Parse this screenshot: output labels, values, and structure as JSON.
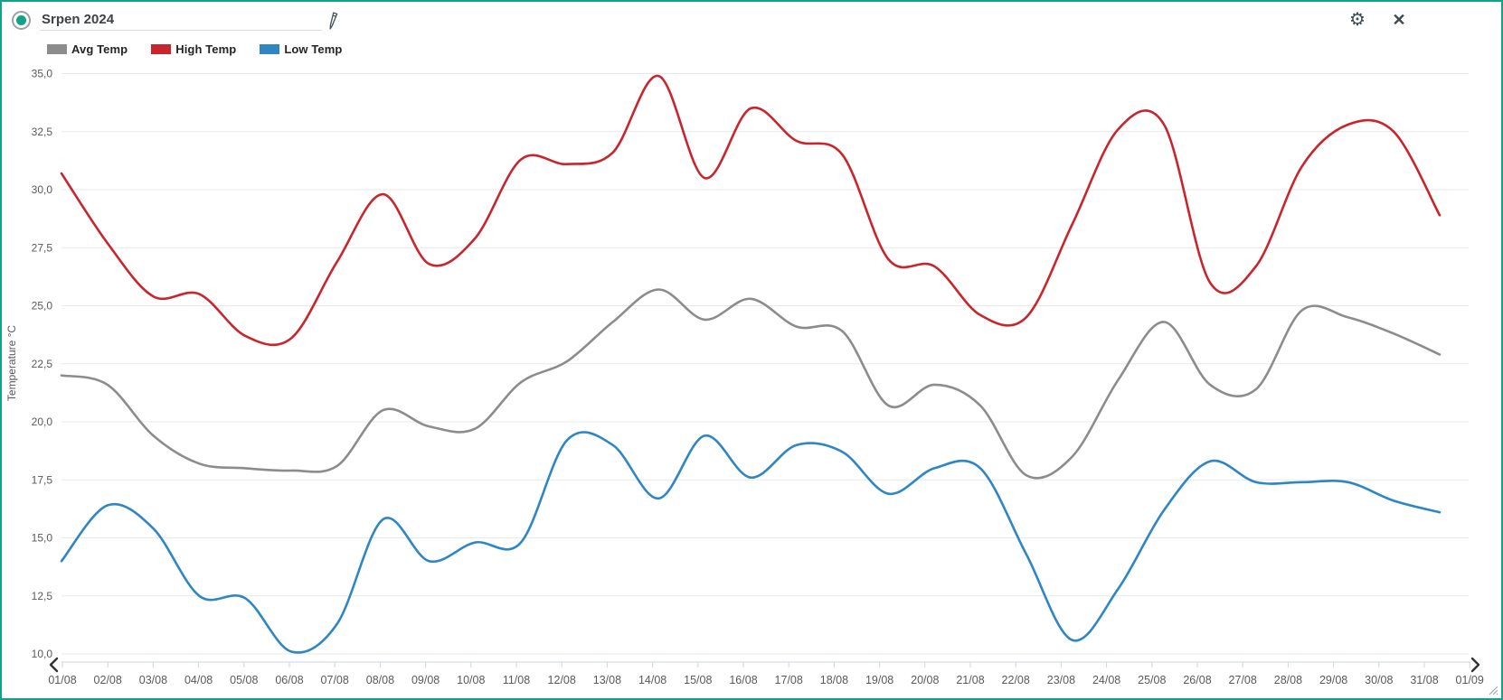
{
  "header": {
    "title": "Srpen 2024"
  },
  "icons": {
    "radio": "record-indicator-icon",
    "edit": "pencil-icon",
    "settings": "gear-icon",
    "close": "close-icon",
    "gear_glyph": "⚙",
    "close_glyph": "✕"
  },
  "colors": {
    "frame": "#12a287",
    "avg": "#8c8c8c",
    "high": "#c9252d",
    "low": "#2e86c4",
    "grid": "#e9e9e9",
    "axis": "#ccd6e0",
    "axis_text": "#5a5a5a",
    "chevron": "#333333"
  },
  "chart_data": {
    "type": "line",
    "smooth": true,
    "title": "",
    "xlabel": "",
    "ylabel": "Temperature °C",
    "ylim": [
      10,
      35
    ],
    "ytick_step": 2.5,
    "y_tick_labels": [
      "35,0",
      "32,5",
      "30,0",
      "27,5",
      "25,0",
      "22,5",
      "20,0",
      "17,5",
      "15,0",
      "12,5",
      "10,0"
    ],
    "x_axis_labels": [
      "01/08",
      "02/08",
      "03/08",
      "04/08",
      "05/08",
      "06/08",
      "07/08",
      "08/08",
      "09/08",
      "10/08",
      "11/08",
      "12/08",
      "13/08",
      "14/08",
      "15/08",
      "16/08",
      "17/08",
      "18/08",
      "19/08",
      "20/08",
      "21/08",
      "22/08",
      "23/08",
      "24/08",
      "25/08",
      "26/08",
      "27/08",
      "28/08",
      "29/08",
      "30/08",
      "31/08",
      "01/09"
    ],
    "categories": [
      "01/08",
      "02/08",
      "03/08",
      "04/08",
      "05/08",
      "06/08",
      "07/08",
      "08/08",
      "09/08",
      "10/08",
      "11/08",
      "12/08",
      "13/08",
      "14/08",
      "15/08",
      "16/08",
      "17/08",
      "18/08",
      "19/08",
      "20/08",
      "21/08",
      "22/08",
      "23/08",
      "24/08",
      "25/08",
      "26/08",
      "27/08",
      "28/08",
      "29/08",
      "30/08",
      "31/08"
    ],
    "grid": "horizontal-only",
    "legend_position": "top-left",
    "series": [
      {
        "name": "Avg Temp",
        "color": "#8c8c8c",
        "values": [
          22.0,
          21.6,
          19.4,
          18.2,
          18.0,
          17.9,
          18.1,
          20.5,
          19.8,
          19.7,
          21.7,
          22.6,
          24.3,
          25.7,
          24.4,
          25.3,
          24.1,
          23.9,
          20.7,
          21.6,
          20.7,
          17.7,
          18.5,
          21.8,
          24.3,
          21.6,
          21.4,
          24.8,
          24.5,
          23.8,
          22.9
        ]
      },
      {
        "name": "High Temp",
        "color": "#c9252d",
        "values": [
          30.7,
          27.7,
          25.4,
          25.5,
          23.7,
          23.6,
          26.9,
          29.8,
          26.8,
          27.9,
          31.3,
          31.1,
          31.6,
          34.9,
          30.5,
          33.5,
          32.1,
          31.5,
          27.0,
          26.7,
          24.6,
          24.5,
          28.5,
          32.6,
          32.8,
          26.0,
          26.7,
          31.0,
          32.8,
          32.5,
          28.9
        ]
      },
      {
        "name": "Low Temp",
        "color": "#2e86c4",
        "values": [
          14.0,
          16.4,
          15.4,
          12.5,
          12.4,
          10.1,
          11.3,
          15.8,
          14.0,
          14.8,
          14.8,
          19.2,
          19.0,
          16.7,
          19.4,
          17.6,
          19.0,
          18.7,
          16.9,
          18.0,
          18.0,
          14.3,
          10.6,
          12.8,
          16.2,
          18.3,
          17.4,
          17.4,
          17.4,
          16.6,
          16.1
        ]
      }
    ]
  },
  "navigation": {
    "prev": "chevron-left-icon",
    "next": "chevron-right-icon"
  }
}
